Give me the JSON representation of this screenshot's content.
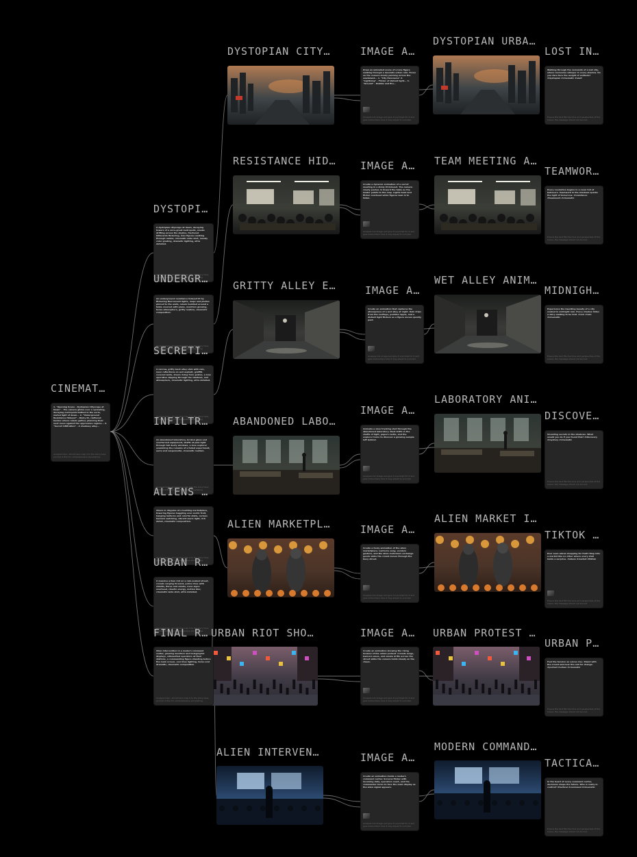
{
  "root": {
    "label": "CINEMAT...",
    "text": "1. \"Opening Scene - Dystopian Cityscape at Dawn\" - The camera glides over a sprawling, decaying metropolis bathed in the eerie, muted light of dawn... 2. \"Underground Resistance Hideout\" - Dimly lit, cluttered bunker where rebels gather, planning their next move against the oppressive regime... 3. \"Secret Infiltration\" - A shadowy alley...",
    "foot": "Analysis topic, should also map it to the story here, prompt is fine for comprehensive storytelling."
  },
  "scenes": [
    {
      "scene_label": "DYSTOPI...",
      "scene_text": "A dystopian cityscape at dawn, decaying towers of a once-great metropolis, smoke drifting across the skyline, fractured billboards flickering, lone figures walking through rubble, cinematic wide shot, moody color grading, dramatic lighting, ultra detailed.",
      "scene_foot": "Analysis topic, should also map it to the story here, prompt is fine for comprehensive storytelling.",
      "image_label": "DYSTOPIAN CITY...",
      "prompt_label": "IMAGE A...",
      "prompt_text": "Draw an animated scene of a lone figure walking through a desolate urban ruin. Focus on the camera slowly panning across the wasteland... 1. \"City Panorama\" 2. \"Lightning\" - Flicker of distant light... 3. \"Ground\" - Rubble and fire...",
      "prompt_foot": "Analysis link image and give it a prompt for it and give instructions how it may adjust to a model.",
      "anim_label": "DYSTOPIAN URBA...",
      "out_label": "LOST IN...",
      "out_text": "Walking through the remnants of a lost city, where memories whisper in every shadow. Do you dare face the weight of solitude? #dystopian #cinematic #aiart",
      "out_foot": "Ensure the text fits the tone and perspective of the scene, the message should not be lost."
    },
    {
      "scene_label": "UNDERGR...",
      "scene_text": "An underground resistance hideout lit by flickering fluorescent lights, maps and photos pinned to the walls, rebels huddled around a table covered with plans, monitors glowing, tense atmosphere, gritty realism, cinematic composition.",
      "scene_foot": "Analysis topic, should also map it to the story here, prompt is fine for comprehensive storytelling.",
      "image_label": "RESISTANCE HID...",
      "prompt_label": "IMAGE A...",
      "prompt_text": "Create a dynamic animation of a secret meeting in a dimly lit hideout. The camera slowly pushes in toward the table as the leader points to the map. Lights buzz and flicker overhead while figures lean in to listen.",
      "prompt_foot": "Analysis link image and give it a prompt for it and give instructions how it may adjust to a model.",
      "anim_label": "TEAM MEETING A...",
      "out_label": "TEAMWOR...",
      "out_text": "Every revolution begins in a room full of believers. Teamwork in the shadows sparks the light of tomorrow. #resistance #teamwork #cinematic",
      "out_foot": "Ensure the text fits the tone and perspective of the scene, the message should not be lost."
    },
    {
      "scene_label": "SECRETI...",
      "scene_text": "A narrow, gritty back alley slick with rain, neon reflections on wet asphalt, graffiti-covered walls, steam rising from grates, a lone operative slipping through the shadows, noir atmosphere, cinematic lighting, ultra detailed.",
      "scene_foot": "Analysis topic, should also map it to the story here, prompt is fine for comprehensive storytelling.",
      "image_label": "GRITTY ALLEY E...",
      "prompt_label": "IMAGE A...",
      "prompt_text": "Create an animation that captures the atmosphere of a wet alley at night. Rain drips from the rooftops, puddles ripple, and a distant light flickers as a figure moves quietly past.",
      "prompt_foot": "Analysis link image and give it a prompt for it and give instructions how it may adjust to a model.",
      "anim_label": "WET ALLEY ANIM...",
      "out_label": "MIDNIGH...",
      "out_text": "Experience the haunting beauty of a city soaked in midnight rain. Every shadow hides a story waiting to be told. #noir #rain #cinematic",
      "out_foot": "Ensure the text fits the tone and perspective of the scene, the message should not be lost."
    },
    {
      "scene_label": "INFILTR...",
      "scene_text": "An abandoned laboratory, broken glass and overturned equipment, shafts of pale light through tall dusty windows, a lone explorer examining the remains of a failed experiment, eerie and suspenseful, cinematic realism.",
      "scene_foot": "Analysis topic, should also map it to the story here, prompt is fine for comprehensive storytelling.",
      "image_label": "ABANDONED LABO...",
      "prompt_label": "IMAGE A...",
      "prompt_text": "Animate a slow tracking shot through the abandoned laboratory. Dust drifts in the shafts of light, papers rustle, and the explorer turns to discover a glowing sample left behind.",
      "prompt_foot": "Analysis link image and give it a prompt for it and give instructions how it may adjust to a model.",
      "anim_label": "LABORATORY ANI...",
      "out_label": "DISCOVE...",
      "out_text": "Unveiling secrets in the shadows. What would you do if you found this? #discovery #mystery #cinematic",
      "out_foot": "Ensure the text fits the tone and perspective of the scene, the message should not be lost."
    },
    {
      "scene_label": "ALIENS ...",
      "scene_text": "Aliens in disguise at a bustling marketplace, towering figures haggling over exotic fruit, hanging lanterns and colorful stalls, curious humans watching, vibrant warm light, rich detail, cinematic composition.",
      "scene_foot": "Analysis topic, should also map it to the story here, prompt is fine for comprehensive storytelling.",
      "image_label": "ALIEN MARKETPL...",
      "prompt_label": "IMAGE A...",
      "prompt_text": "Create a lively animation of the alien marketplace. Lanterns sway, vendors gesture, and the alien customers exchange goods while the crowd moves through the busy street.",
      "prompt_foot": "Analysis link image and give it a prompt for it and give instructions how it may adjust to a model.",
      "anim_label": "ALIEN MARKET I...",
      "out_label": "TIKTOK ...",
      "out_text": "Ever seen aliens shopping for fruit? Step into a market like no other where every stall holds a surprise. #aliens #market #tiktok",
      "out_foot": "Ensure the text fits the tone and perspective of the scene, the message should not be lost."
    },
    {
      "scene_label": "URBAN R...",
      "scene_text": "A massive urban riot on a rain-soaked street, crowds surging forward, police lines with shields, flares and smoke, neon signs overhead, chaotic energy, motion blur, cinematic wide shot, ultra detailed.",
      "scene_foot": "Analysis topic, should also map it to the story here, prompt is fine for comprehensive storytelling.",
      "image_label": "URBAN RIOT SHO...",
      "prompt_label": "IMAGE A...",
      "prompt_text": "Create an animation showing the rising tension of the urban protest. Crowds surge, banners wave, and smoke drifts across the street while the camera holds steady on the chaos.",
      "prompt_foot": "Analysis link image and give it a prompt for it and give instructions how it may adjust to a model.",
      "anim_label": "URBAN PROTEST ...",
      "out_label": "URBAN P...",
      "out_text": "Feel the tension as voices rise. Stand with the crowd and hear the call for change. #protest #urban #cinematic",
      "out_foot": "Ensure the text fits the tone and perspective of the scene, the message should not be lost."
    },
    {
      "scene_label": "FINAL R...",
      "scene_text": "Alien intervention in a modern command center, glowing monitors and holographic displays, silhouetted operators at their stations, a commanding figure standing before the main screen, cool blue lighting, tense and dramatic, cinematic composition.",
      "scene_foot": "Analysis topic, should also map it to the story here, prompt is fine for comprehensive storytelling.",
      "image_label": "ALIEN INTERVEN...",
      "prompt_label": "IMAGE A...",
      "prompt_text": "Create an animation inside a modern command center. Screens flicker with incoming data, operators react, and the commander turns to face the main display as the alien signal appears.",
      "prompt_foot": "Analysis link image and give it a prompt for it and give instructions how it may adjust to a model.",
      "anim_label": "MODERN COMMAND...",
      "out_label": "TACTICA...",
      "out_text": "In the heart of every command center, decisions shape the future. Who is really in control? #tactical #command #cinematic",
      "out_foot": "Ensure the text fits the tone and perspective of the scene, the message should not be lost."
    }
  ],
  "images": {
    "img1": {
      "sky": "#b07a52",
      "mid": "#3f4548",
      "ground": "#1d2123",
      "accent": "#e09050",
      "kind": "city"
    },
    "img2": {
      "sky": "#2d2f2c",
      "mid": "#3b3d37",
      "ground": "#181918",
      "accent": "#e8e4d2",
      "kind": "room"
    },
    "img3": {
      "sky": "#1c1e1d",
      "mid": "#3a3b38",
      "ground": "#2a2c2a",
      "accent": "#c8c4b8",
      "kind": "alley"
    },
    "img4": {
      "sky": "#2c3532",
      "mid": "#3c403b",
      "ground": "#1f211e",
      "accent": "#b7c6bd",
      "kind": "lab"
    },
    "img5": {
      "sky": "#5a3a2a",
      "mid": "#4b3428",
      "ground": "#2d1f18",
      "accent": "#e7a23c",
      "kind": "market"
    },
    "img6": {
      "sky": "#7a5d6a",
      "mid": "#3f3a45",
      "ground": "#2a2a32",
      "accent": "#f05a3c",
      "kind": "riot"
    },
    "img7": {
      "sky": "#0f1b2c",
      "mid": "#2c4a70",
      "ground": "#0b111a",
      "accent": "#b8d6f2",
      "kind": "command"
    }
  }
}
